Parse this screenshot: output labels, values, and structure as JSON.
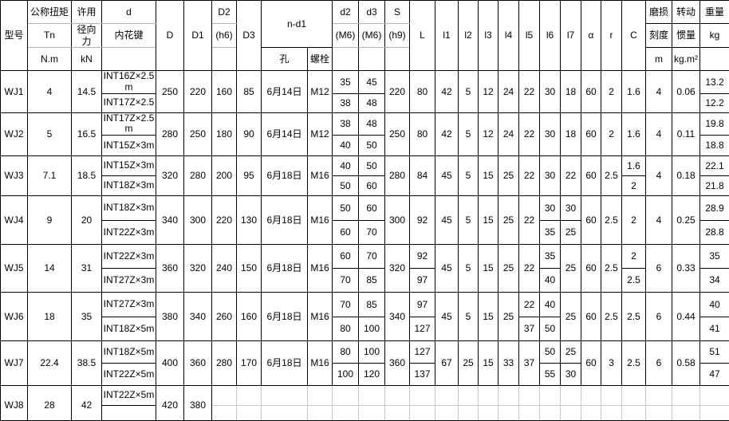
{
  "table": {
    "header": {
      "model": "型号",
      "torque": [
        "公称扭矩",
        "Tn",
        "N.m"
      ],
      "radial": [
        "许用",
        "径向力",
        "kN"
      ],
      "spline": [
        "d",
        "内花键",
        ""
      ],
      "D": "D",
      "D1": "D1",
      "D2": [
        "D2",
        "(h6)",
        ""
      ],
      "D3": "D3",
      "nd1": "n-d1",
      "hole": "孔",
      "bolt": "螺栓",
      "d2": [
        "d2",
        "(M6)",
        ""
      ],
      "d3": [
        "d3",
        "(M6)",
        ""
      ],
      "S": [
        "S",
        "(h9)",
        ""
      ],
      "L": "L",
      "l1": "l1",
      "l2": "l2",
      "l3": "l3",
      "l4": "l4",
      "l5": "l5",
      "l6": "l6",
      "l7": "l7",
      "alpha": "α",
      "r": "r",
      "C": "C",
      "wear": [
        "磨损",
        "刻度",
        "m"
      ],
      "inertia": [
        "转动",
        "惯量",
        "kg.m²"
      ],
      "weight": [
        "重量",
        "kg",
        ""
      ]
    },
    "rows": [
      {
        "model": "WJ1",
        "tn": "4",
        "kn": "14.5",
        "spline": [
          "INT16Z×2.5m",
          "INT17Z×2.5"
        ],
        "D": "250",
        "D1": "220",
        "D2": "160",
        "D3": "85",
        "hole": "6月14日",
        "bolt": "M12",
        "d2": [
          "35",
          "38"
        ],
        "d3": [
          "45",
          "48"
        ],
        "S": "220",
        "L": "80",
        "l1": "42",
        "l2": "5",
        "l3": "12",
        "l4": "24",
        "l5": "22",
        "l6": "30",
        "l7": "18",
        "alpha": "60",
        "r": "2",
        "C": "1.6",
        "wear": "4",
        "inertia": "0.06",
        "weight": [
          "13.2",
          "12.2"
        ]
      },
      {
        "model": "WJ2",
        "tn": "5",
        "kn": "16.5",
        "spline": [
          "INT17Z×2.5m",
          "INT15Z×3m"
        ],
        "D": "280",
        "D1": "250",
        "D2": "180",
        "D3": "90",
        "hole": "6月14日",
        "bolt": "M12",
        "d2": [
          "38",
          "40"
        ],
        "d3": [
          "48",
          "50"
        ],
        "S": "250",
        "L": "80",
        "l1": "42",
        "l2": "5",
        "l3": "12",
        "l4": "24",
        "l5": "22",
        "l6": "30",
        "l7": "18",
        "alpha": "60",
        "r": "2",
        "C": "1.6",
        "wear": "4",
        "inertia": "0.11",
        "weight": [
          "19.8",
          "18.8"
        ]
      },
      {
        "model": "WJ3",
        "tn": "7.1",
        "kn": "18.5",
        "spline": [
          "INT15Z×3m",
          "INT18Z×3m"
        ],
        "D": "320",
        "D1": "280",
        "D2": "200",
        "D3": "95",
        "hole": "6月18日",
        "bolt": "M16",
        "d2": [
          "40",
          "50"
        ],
        "d3": [
          "50",
          "60"
        ],
        "S": "280",
        "L": "84",
        "l1": "45",
        "l2": "5",
        "l3": "15",
        "l4": "25",
        "l5": "22",
        "l6": "30",
        "l7": "22",
        "alpha": "60",
        "r": "2.5",
        "C": [
          "1.6",
          "2"
        ],
        "wear": "4",
        "inertia": "0.18",
        "weight": [
          "22.1",
          "21.8"
        ]
      },
      {
        "model": "WJ4",
        "tn": "9",
        "kn": "20",
        "spline": [
          "INT18Z×3m",
          "INT22Z×3m"
        ],
        "D": "340",
        "D1": "300",
        "D2": "220",
        "D3": "130",
        "hole": "6月18日",
        "bolt": "M16",
        "d2": [
          "50",
          "60"
        ],
        "d3": [
          "60",
          "70"
        ],
        "S": "300",
        "L": "92",
        "l1": "45",
        "l2": "5",
        "l3": "15",
        "l4": "25",
        "l5": "22",
        "l6": [
          "30",
          "35"
        ],
        "l7": [
          "30",
          "25"
        ],
        "alpha": "60",
        "r": "2.5",
        "C": "2",
        "wear": "4",
        "inertia": "0.25",
        "weight": [
          "28.9",
          "28.8"
        ]
      },
      {
        "model": "WJ5",
        "tn": "14",
        "kn": "31",
        "spline": [
          "INT22Z×3m",
          "INT27Z×3m"
        ],
        "D": "360",
        "D1": "320",
        "D2": "240",
        "D3": "150",
        "hole": "6月18日",
        "bolt": "M16",
        "d2": [
          "60",
          "70"
        ],
        "d3": [
          "70",
          "85"
        ],
        "S": "320",
        "L": [
          "92",
          "97"
        ],
        "l1": "45",
        "l2": "5",
        "l3": "15",
        "l4": "25",
        "l5": "22",
        "l6": [
          "35",
          "40"
        ],
        "l7": "25",
        "alpha": "60",
        "r": "2.5",
        "C": [
          "2",
          "2.5"
        ],
        "wear": "6",
        "inertia": "0.33",
        "weight": [
          "35",
          "34"
        ]
      },
      {
        "model": "WJ6",
        "tn": "18",
        "kn": "35",
        "spline": [
          "INT27Z×3m",
          "INT18Z×5m"
        ],
        "D": "380",
        "D1": "340",
        "D2": "260",
        "D3": "160",
        "hole": "6月18日",
        "bolt": "M16",
        "d2": [
          "70",
          "80"
        ],
        "d3": [
          "85",
          "100"
        ],
        "S": "340",
        "L": [
          "97",
          "127"
        ],
        "l1": "45",
        "l2": "5",
        "l3": "15",
        "l4": "25",
        "l5": [
          "22",
          "37"
        ],
        "l6": [
          "40",
          "50"
        ],
        "l7": "25",
        "alpha": "60",
        "r": "2.5",
        "C": "2.5",
        "wear": "6",
        "inertia": "0.44",
        "weight": [
          "40",
          "41"
        ]
      },
      {
        "model": "WJ7",
        "tn": "22.4",
        "kn": "38.5",
        "spline": [
          "INT18Z×5m",
          "INT22Z×5m"
        ],
        "D": "400",
        "D1": "360",
        "D2": "280",
        "D3": "170",
        "hole": "6月18日",
        "bolt": "M16",
        "d2": [
          "80",
          "100"
        ],
        "d3": [
          "100",
          "120"
        ],
        "S": "360",
        "L": [
          "127",
          "137"
        ],
        "l1": "67",
        "l2": "25",
        "l3": "15",
        "l4": "33",
        "l5": "37",
        "l6": [
          "50",
          "55"
        ],
        "l7": [
          "25",
          "30"
        ],
        "alpha": "60",
        "r": "3",
        "C": "2.5",
        "wear": "6",
        "inertia": "0.58",
        "weight": [
          "51",
          "47"
        ]
      },
      {
        "model": "WJ8",
        "tn": "28",
        "kn": "42",
        "spline": [
          "INT22Z×5m",
          ""
        ],
        "D": "420",
        "D1": "380",
        "D2": [
          "",
          ""
        ],
        "D3": [
          "",
          ""
        ],
        "hole": [
          "",
          ""
        ],
        "bolt": [
          "",
          ""
        ],
        "d2": [
          "",
          ""
        ],
        "d3": [
          "",
          ""
        ],
        "S": [
          "",
          ""
        ],
        "L": [
          "",
          ""
        ],
        "l1": [
          "",
          ""
        ],
        "l2": [
          "",
          ""
        ],
        "l3": [
          "",
          ""
        ],
        "l4": [
          "",
          ""
        ],
        "l5": [
          "",
          ""
        ],
        "l6": [
          "",
          ""
        ],
        "l7": [
          "",
          ""
        ],
        "alpha": [
          "",
          ""
        ],
        "r": [
          "",
          ""
        ],
        "C": [
          "",
          ""
        ],
        "wear": [
          "",
          ""
        ],
        "inertia": [
          "",
          ""
        ],
        "weight": [
          "",
          ""
        ],
        "unformatted_from": "D2"
      }
    ]
  }
}
